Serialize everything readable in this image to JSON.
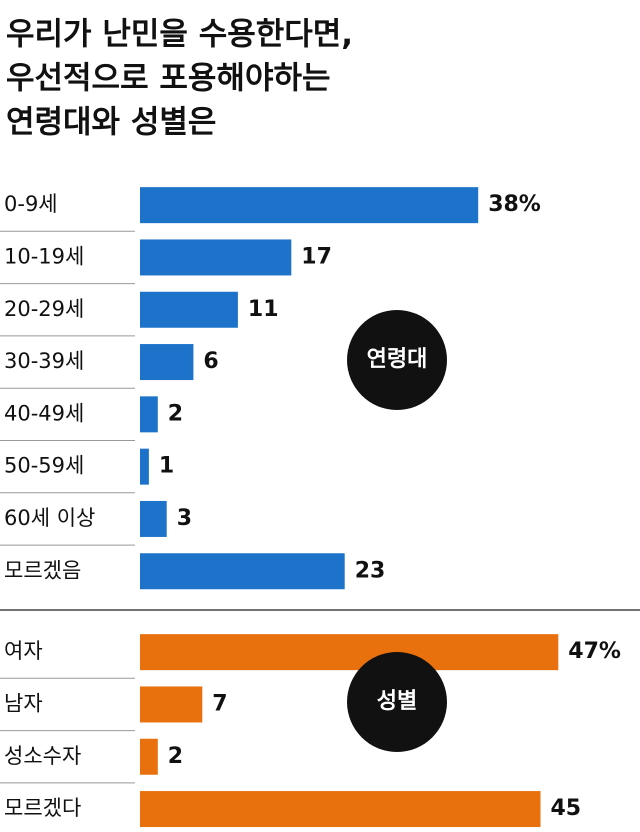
{
  "title": [
    "우리가 난민을 수용한다면,",
    "우선적으로 포용해야하는",
    "연령대와 성별은"
  ],
  "chart_data": [
    {
      "type": "bar",
      "label": "연령대",
      "color": "#1d73c9",
      "categories": [
        "0-9세",
        "10-19세",
        "20-29세",
        "30-39세",
        "40-49세",
        "50-59세",
        "60세 이상",
        "모르겠음"
      ],
      "values": [
        38,
        17,
        11,
        6,
        2,
        1,
        3,
        23
      ],
      "value_labels": [
        "38%",
        "17",
        "11",
        "6",
        "2",
        "1",
        "3",
        "23"
      ]
    },
    {
      "type": "bar",
      "label": "성별",
      "color": "#e8710e",
      "categories": [
        "여자",
        "남자",
        "성소수자",
        "모르겠다"
      ],
      "values": [
        47,
        7,
        2,
        45
      ],
      "value_labels": [
        "47%",
        "7",
        "2",
        "45"
      ]
    }
  ]
}
